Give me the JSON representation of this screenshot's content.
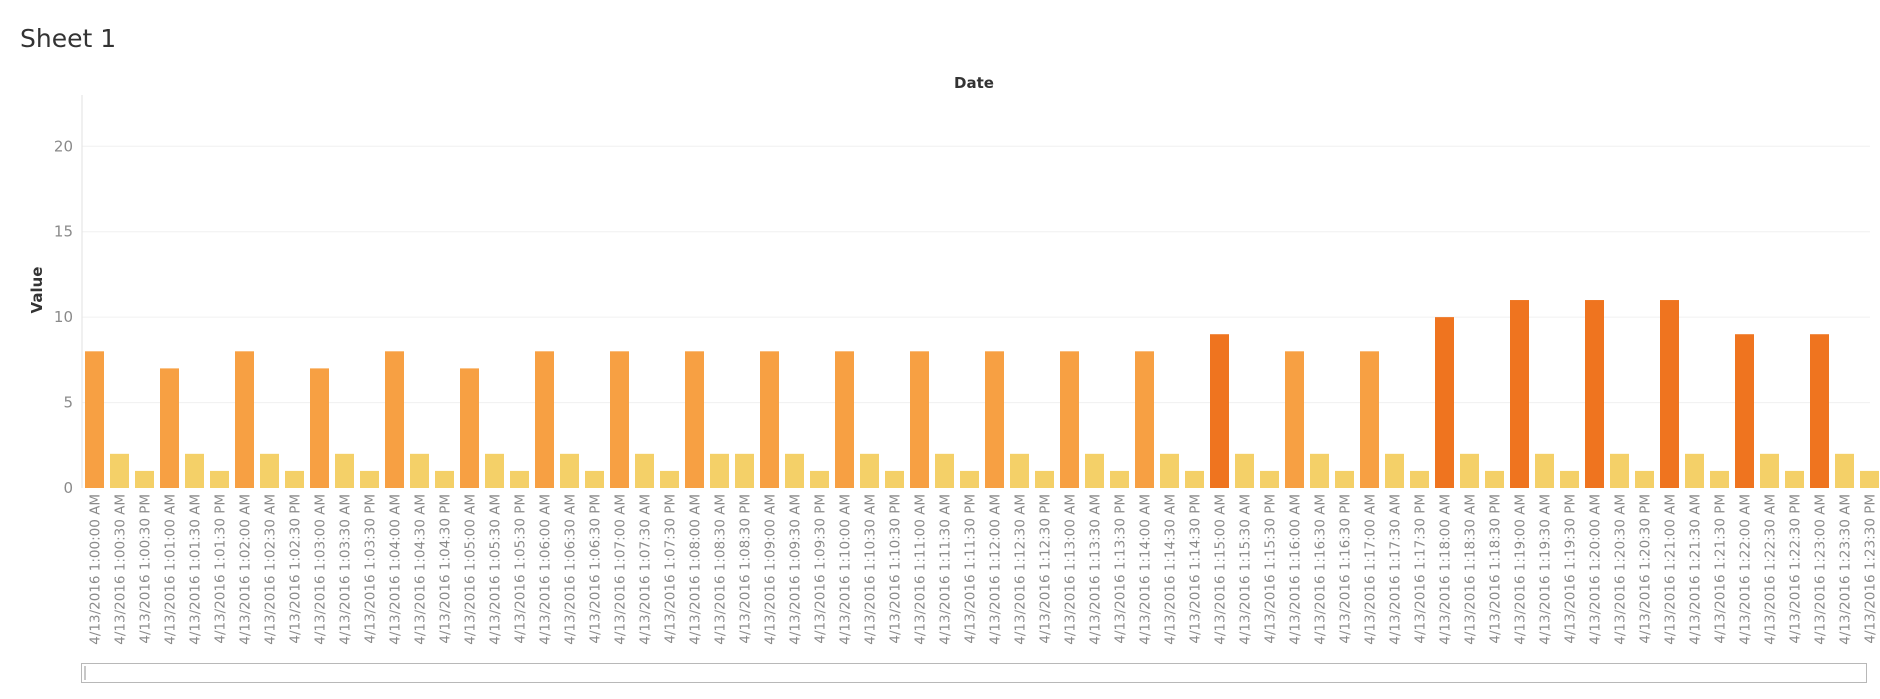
{
  "sheet": {
    "title": "Sheet 1"
  },
  "colors": {
    "high": "#ef741f",
    "mid": "#f7a043",
    "low": "#f4d068",
    "grid": "#f0f0f0",
    "axis": "#e2e2e2"
  },
  "chart_data": {
    "type": "bar",
    "title": "",
    "xlabel": "Date",
    "ylabel": "Value",
    "ylim": [
      0,
      23
    ],
    "yticks": [
      0,
      5,
      10,
      15,
      20
    ],
    "grid": true,
    "categories": [
      "4/13/2016 1:00:00 AM",
      "4/13/2016 1:00:30 AM",
      "4/13/2016 1:00:30 PM",
      "4/13/2016 1:01:00 AM",
      "4/13/2016 1:01:30 AM",
      "4/13/2016 1:01:30 PM",
      "4/13/2016 1:02:00 AM",
      "4/13/2016 1:02:30 AM",
      "4/13/2016 1:02:30 PM",
      "4/13/2016 1:03:00 AM",
      "4/13/2016 1:03:30 AM",
      "4/13/2016 1:03:30 PM",
      "4/13/2016 1:04:00 AM",
      "4/13/2016 1:04:30 AM",
      "4/13/2016 1:04:30 PM",
      "4/13/2016 1:05:00 AM",
      "4/13/2016 1:05:30 AM",
      "4/13/2016 1:05:30 PM",
      "4/13/2016 1:06:00 AM",
      "4/13/2016 1:06:30 AM",
      "4/13/2016 1:06:30 PM",
      "4/13/2016 1:07:00 AM",
      "4/13/2016 1:07:30 AM",
      "4/13/2016 1:07:30 PM",
      "4/13/2016 1:08:00 AM",
      "4/13/2016 1:08:30 AM",
      "4/13/2016 1:08:30 PM",
      "4/13/2016 1:09:00 AM",
      "4/13/2016 1:09:30 AM",
      "4/13/2016 1:09:30 PM",
      "4/13/2016 1:10:00 AM",
      "4/13/2016 1:10:30 AM",
      "4/13/2016 1:10:30 PM",
      "4/13/2016 1:11:00 AM",
      "4/13/2016 1:11:30 AM",
      "4/13/2016 1:11:30 PM",
      "4/13/2016 1:12:00 AM",
      "4/13/2016 1:12:30 AM",
      "4/13/2016 1:12:30 PM",
      "4/13/2016 1:13:00 AM",
      "4/13/2016 1:13:30 AM",
      "4/13/2016 1:13:30 PM",
      "4/13/2016 1:14:00 AM",
      "4/13/2016 1:14:30 AM",
      "4/13/2016 1:14:30 PM",
      "4/13/2016 1:15:00 AM",
      "4/13/2016 1:15:30 AM",
      "4/13/2016 1:15:30 PM",
      "4/13/2016 1:16:00 AM",
      "4/13/2016 1:16:30 AM",
      "4/13/2016 1:16:30 PM",
      "4/13/2016 1:17:00 AM",
      "4/13/2016 1:17:30 AM",
      "4/13/2016 1:17:30 PM",
      "4/13/2016 1:18:00 AM",
      "4/13/2016 1:18:30 AM",
      "4/13/2016 1:18:30 PM",
      "4/13/2016 1:19:00 AM",
      "4/13/2016 1:19:30 AM",
      "4/13/2016 1:19:30 PM",
      "4/13/2016 1:20:00 AM",
      "4/13/2016 1:20:30 AM",
      "4/13/2016 1:20:30 PM",
      "4/13/2016 1:21:00 AM",
      "4/13/2016 1:21:30 AM",
      "4/13/2016 1:21:30 PM",
      "4/13/2016 1:22:00 AM",
      "4/13/2016 1:22:30 AM",
      "4/13/2016 1:22:30 PM",
      "4/13/2016 1:23:00 AM",
      "4/13/2016 1:23:30 AM",
      "4/13/2016 1:23:30 PM"
    ],
    "values": [
      8,
      2,
      1,
      7,
      2,
      1,
      8,
      2,
      1,
      7,
      2,
      1,
      8,
      2,
      1,
      7,
      2,
      1,
      8,
      2,
      1,
      8,
      2,
      1,
      8,
      2,
      2,
      8,
      2,
      1,
      8,
      2,
      1,
      8,
      2,
      1,
      8,
      2,
      1,
      8,
      2,
      1,
      8,
      2,
      1,
      9,
      2,
      1,
      8,
      2,
      1,
      8,
      2,
      1,
      10,
      2,
      1,
      11,
      2,
      1,
      11,
      2,
      1,
      11,
      2,
      1,
      9,
      2,
      1,
      9,
      2,
      1
    ]
  }
}
